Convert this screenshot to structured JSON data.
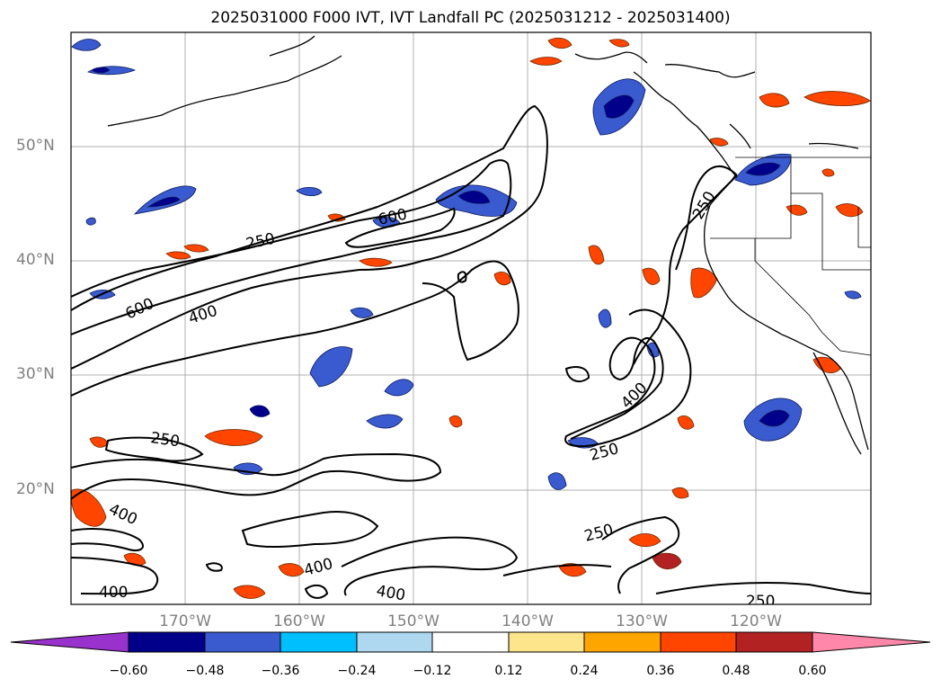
{
  "title": "2025031000 F000 IVT, IVT Landfall PC (2025031212 - 2025031400)",
  "lat_labels": [
    "50°N",
    "40°N",
    "30°N",
    "20°N"
  ],
  "lon_labels": [
    "170°W",
    "160°W",
    "150°W",
    "140°W",
    "130°W",
    "120°W"
  ],
  "contour_labels": [
    "250",
    "600",
    "250",
    "600",
    "400",
    "400",
    "250",
    "250",
    "400",
    "250",
    "400",
    "400",
    "250",
    "400"
  ],
  "colorbar": {
    "ticks": [
      "−0.60",
      "−0.48",
      "−0.36",
      "−0.24",
      "−0.12",
      "0.12",
      "0.24",
      "0.36",
      "0.48",
      "0.60"
    ],
    "colors": [
      "#9932cc",
      "#00008b",
      "#3a5bcf",
      "#00bfff",
      "#add8f0",
      "#ffffff",
      "#fce58a",
      "#ffa500",
      "#ff4500",
      "#b22222",
      "#ff88aa"
    ]
  }
}
